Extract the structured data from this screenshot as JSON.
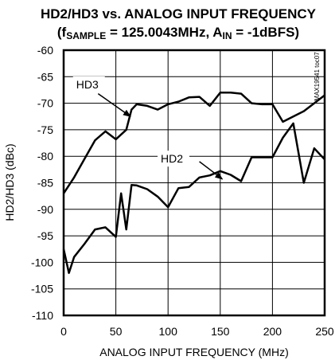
{
  "chart_data": {
    "type": "line",
    "title_line1": "HD2/HD3 vs. ANALOG INPUT FREQUENCY",
    "title_line2": {
      "p1": "(f",
      "p1_sub": "SAMPLE",
      "p2": " = 125.0043MHz, A",
      "p2_sub": "IN",
      "p3": " = -1dBFS)"
    },
    "xlabel": "ANALOG INPUT FREQUENCY (MHz)",
    "ylabel": "HD2/HD3 (dBc)",
    "xlim": [
      0,
      250
    ],
    "ylim": [
      -110,
      -60
    ],
    "xticks": [
      0,
      50,
      100,
      150,
      200,
      250
    ],
    "yticks": [
      -60,
      -65,
      -70,
      -75,
      -80,
      -85,
      -90,
      -95,
      -100,
      -105,
      -110
    ],
    "grid": true,
    "figure_code": "MAX19541 toc07",
    "series": [
      {
        "name": "HD3",
        "x": [
          0,
          10,
          20,
          30,
          40,
          50,
          60,
          65,
          70,
          80,
          90,
          100,
          110,
          120,
          130,
          140,
          150,
          160,
          170,
          180,
          190,
          200,
          210,
          220,
          230,
          240,
          250
        ],
        "y": [
          -87,
          -84,
          -80.5,
          -77,
          -75.3,
          -76.8,
          -75,
          -71.2,
          -70.2,
          -70.5,
          -71.2,
          -70.2,
          -69.7,
          -68.9,
          -68.8,
          -70.5,
          -68,
          -68,
          -68.2,
          -70,
          -70.2,
          -70.2,
          -73.5,
          -72.5,
          -71.5,
          -70,
          -68.5
        ]
      },
      {
        "name": "HD2",
        "x": [
          0,
          5,
          10,
          20,
          30,
          40,
          50,
          55,
          60,
          65,
          70,
          80,
          90,
          100,
          110,
          120,
          130,
          140,
          150,
          160,
          170,
          180,
          190,
          200,
          210,
          220,
          230,
          240,
          250
        ],
        "y": [
          -97.5,
          -102,
          -99,
          -96.5,
          -93.8,
          -93.4,
          -95.2,
          -87,
          -93.8,
          -85.4,
          -85.5,
          -86.2,
          -87.6,
          -89.6,
          -86,
          -85.8,
          -84,
          -83.6,
          -82.8,
          -83.5,
          -84.7,
          -80.2,
          -80.2,
          -80.2,
          -76.5,
          -73.8,
          -85,
          -78.5,
          -80.6
        ]
      }
    ],
    "annotations": [
      {
        "text": "HD3",
        "series": "HD3",
        "label_at": [
          12,
          -67.2
        ],
        "arrow_from": [
          33,
          -68.2
        ],
        "arrow_to": [
          64,
          -72.5
        ]
      },
      {
        "text": "HD2",
        "series": "HD2",
        "label_at": [
          93,
          -81.2
        ],
        "arrow_from": [
          130,
          -81
        ],
        "arrow_to": [
          152,
          -84.3
        ]
      }
    ]
  }
}
